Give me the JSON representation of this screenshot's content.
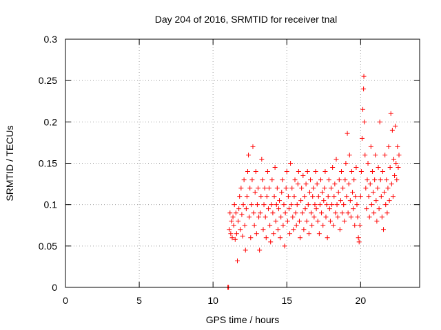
{
  "chart_data": {
    "type": "scatter",
    "title": "Day 204 of 2016, SRMTID for receiver tnal",
    "xlabel": "GPS time / hours",
    "ylabel": "SRMTID / TECUs",
    "xlim": [
      0,
      24
    ],
    "ylim": [
      0,
      0.3
    ],
    "xticks": [
      0,
      5,
      10,
      15,
      20
    ],
    "xtick_labels": [
      "0",
      "5",
      "10",
      "15",
      "20"
    ],
    "yticks": [
      0,
      0.05,
      0.1,
      0.15,
      0.2,
      0.25,
      0.3
    ],
    "ytick_labels": [
      "0",
      "0.05",
      "0.1",
      "0.15",
      "0.2",
      "0.25",
      "0.3"
    ],
    "grid": true,
    "marker": "+",
    "color": "#ff0000",
    "series": [
      {
        "name": "SRMTID",
        "points": [
          [
            11.0,
            0.0
          ],
          [
            11.02,
            0.0
          ],
          [
            11.05,
            0.0
          ],
          [
            11.1,
            0.07
          ],
          [
            11.15,
            0.09
          ],
          [
            11.2,
            0.065
          ],
          [
            11.25,
            0.08
          ],
          [
            11.3,
            0.06
          ],
          [
            11.35,
            0.085
          ],
          [
            11.4,
            0.075
          ],
          [
            11.45,
            0.1
          ],
          [
            11.5,
            0.058
          ],
          [
            11.55,
            0.09
          ],
          [
            11.6,
            0.065
          ],
          [
            11.65,
            0.032
          ],
          [
            11.7,
            0.08
          ],
          [
            11.75,
            0.095
          ],
          [
            11.8,
            0.11
          ],
          [
            11.85,
            0.07
          ],
          [
            11.9,
            0.12
          ],
          [
            11.95,
            0.088
          ],
          [
            12.0,
            0.062
          ],
          [
            12.05,
            0.1
          ],
          [
            12.1,
            0.13
          ],
          [
            12.15,
            0.075
          ],
          [
            12.2,
            0.045
          ],
          [
            12.25,
            0.095
          ],
          [
            12.3,
            0.11
          ],
          [
            12.35,
            0.14
          ],
          [
            12.4,
            0.16
          ],
          [
            12.45,
            0.085
          ],
          [
            12.5,
            0.12
          ],
          [
            12.55,
            0.06
          ],
          [
            12.6,
            0.1
          ],
          [
            12.65,
            0.13
          ],
          [
            12.7,
            0.17
          ],
          [
            12.75,
            0.09
          ],
          [
            12.8,
            0.075
          ],
          [
            12.85,
            0.115
          ],
          [
            12.9,
            0.14
          ],
          [
            12.95,
            0.065
          ],
          [
            13.0,
            0.1
          ],
          [
            13.05,
            0.12
          ],
          [
            13.1,
            0.085
          ],
          [
            13.15,
            0.045
          ],
          [
            13.2,
            0.09
          ],
          [
            13.25,
            0.11
          ],
          [
            13.3,
            0.155
          ],
          [
            13.35,
            0.13
          ],
          [
            13.4,
            0.07
          ],
          [
            13.45,
            0.1
          ],
          [
            13.5,
            0.12
          ],
          [
            13.55,
            0.085
          ],
          [
            13.6,
            0.06
          ],
          [
            13.65,
            0.11
          ],
          [
            13.7,
            0.14
          ],
          [
            13.75,
            0.095
          ],
          [
            13.8,
            0.12
          ],
          [
            13.85,
            0.075
          ],
          [
            13.9,
            0.055
          ],
          [
            13.95,
            0.1
          ],
          [
            14.0,
            0.13
          ],
          [
            14.05,
            0.09
          ],
          [
            14.1,
            0.065
          ],
          [
            14.15,
            0.11
          ],
          [
            14.2,
            0.145
          ],
          [
            14.25,
            0.08
          ],
          [
            14.3,
            0.1
          ],
          [
            14.35,
            0.12
          ],
          [
            14.4,
            0.07
          ],
          [
            14.45,
            0.095
          ],
          [
            14.5,
            0.105
          ],
          [
            14.55,
            0.06
          ],
          [
            14.6,
            0.085
          ],
          [
            14.65,
            0.115
          ],
          [
            14.7,
            0.13
          ],
          [
            14.75,
            0.075
          ],
          [
            14.8,
            0.1
          ],
          [
            14.85,
            0.05
          ],
          [
            14.9,
            0.09
          ],
          [
            14.95,
            0.12
          ],
          [
            15.0,
            0.14
          ],
          [
            15.05,
            0.08
          ],
          [
            15.1,
            0.11
          ],
          [
            15.15,
            0.095
          ],
          [
            15.2,
            0.065
          ],
          [
            15.25,
            0.15
          ],
          [
            15.3,
            0.1
          ],
          [
            15.35,
            0.12
          ],
          [
            15.4,
            0.085
          ],
          [
            15.45,
            0.07
          ],
          [
            15.5,
            0.11
          ],
          [
            15.55,
            0.13
          ],
          [
            15.6,
            0.09
          ],
          [
            15.65,
            0.075
          ],
          [
            15.7,
            0.1
          ],
          [
            15.75,
            0.125
          ],
          [
            15.8,
            0.14
          ],
          [
            15.85,
            0.08
          ],
          [
            15.9,
            0.06
          ],
          [
            15.95,
            0.105
          ],
          [
            16.0,
            0.12
          ],
          [
            16.05,
            0.09
          ],
          [
            16.1,
            0.135
          ],
          [
            16.15,
            0.07
          ],
          [
            16.2,
            0.11
          ],
          [
            16.25,
            0.095
          ],
          [
            16.3,
            0.125
          ],
          [
            16.35,
            0.08
          ],
          [
            16.4,
            0.14
          ],
          [
            16.45,
            0.1
          ],
          [
            16.5,
            0.065
          ],
          [
            16.55,
            0.115
          ],
          [
            16.6,
            0.13
          ],
          [
            16.65,
            0.09
          ],
          [
            16.7,
            0.075
          ],
          [
            16.75,
            0.11
          ],
          [
            16.8,
            0.12
          ],
          [
            16.85,
            0.085
          ],
          [
            16.9,
            0.1
          ],
          [
            16.95,
            0.14
          ],
          [
            17.0,
            0.095
          ],
          [
            17.05,
            0.125
          ],
          [
            17.1,
            0.08
          ],
          [
            17.15,
            0.11
          ],
          [
            17.2,
            0.065
          ],
          [
            17.25,
            0.1
          ],
          [
            17.3,
            0.13
          ],
          [
            17.35,
            0.09
          ],
          [
            17.4,
            0.115
          ],
          [
            17.45,
            0.075
          ],
          [
            17.5,
            0.105
          ],
          [
            17.55,
            0.12
          ],
          [
            17.6,
            0.14
          ],
          [
            17.65,
            0.085
          ],
          [
            17.7,
            0.1
          ],
          [
            17.75,
            0.06
          ],
          [
            17.8,
            0.11
          ],
          [
            17.85,
            0.13
          ],
          [
            17.9,
            0.095
          ],
          [
            17.95,
            0.08
          ],
          [
            18.0,
            0.12
          ],
          [
            18.05,
            0.1
          ],
          [
            18.1,
            0.145
          ],
          [
            18.15,
            0.075
          ],
          [
            18.2,
            0.11
          ],
          [
            18.25,
            0.125
          ],
          [
            18.3,
            0.09
          ],
          [
            18.35,
            0.155
          ],
          [
            18.4,
            0.1
          ],
          [
            18.45,
            0.085
          ],
          [
            18.5,
            0.115
          ],
          [
            18.55,
            0.13
          ],
          [
            18.6,
            0.07
          ],
          [
            18.65,
            0.105
          ],
          [
            18.7,
            0.14
          ],
          [
            18.75,
            0.09
          ],
          [
            18.8,
            0.12
          ],
          [
            18.85,
            0.1
          ],
          [
            18.9,
            0.08
          ],
          [
            18.95,
            0.13
          ],
          [
            19.0,
            0.15
          ],
          [
            19.05,
            0.11
          ],
          [
            19.1,
            0.186
          ],
          [
            19.15,
            0.09
          ],
          [
            19.2,
            0.125
          ],
          [
            19.25,
            0.16
          ],
          [
            19.3,
            0.105
          ],
          [
            19.35,
            0.085
          ],
          [
            19.4,
            0.14
          ],
          [
            19.45,
            0.115
          ],
          [
            19.5,
            0.095
          ],
          [
            19.55,
            0.13
          ],
          [
            19.6,
            0.075
          ],
          [
            19.65,
            0.11
          ],
          [
            19.7,
            0.145
          ],
          [
            19.75,
            0.1
          ],
          [
            19.8,
            0.085
          ],
          [
            19.85,
            0.06
          ],
          [
            19.9,
            0.055
          ],
          [
            19.95,
            0.075
          ],
          [
            20.0,
            0.11
          ],
          [
            20.05,
            0.14
          ],
          [
            20.1,
            0.18
          ],
          [
            20.15,
            0.215
          ],
          [
            20.2,
            0.24
          ],
          [
            20.22,
            0.255
          ],
          [
            20.25,
            0.2
          ],
          [
            20.3,
            0.16
          ],
          [
            20.35,
            0.12
          ],
          [
            20.4,
            0.095
          ],
          [
            20.45,
            0.13
          ],
          [
            20.5,
            0.15
          ],
          [
            20.55,
            0.11
          ],
          [
            20.6,
            0.085
          ],
          [
            20.65,
            0.125
          ],
          [
            20.7,
            0.17
          ],
          [
            20.75,
            0.1
          ],
          [
            20.8,
            0.14
          ],
          [
            20.85,
            0.115
          ],
          [
            20.9,
            0.09
          ],
          [
            20.95,
            0.13
          ],
          [
            21.0,
            0.16
          ],
          [
            21.05,
            0.105
          ],
          [
            21.1,
            0.08
          ],
          [
            21.15,
            0.12
          ],
          [
            21.2,
            0.145
          ],
          [
            21.25,
            0.095
          ],
          [
            21.3,
            0.2
          ],
          [
            21.35,
            0.13
          ],
          [
            21.4,
            0.11
          ],
          [
            21.45,
            0.085
          ],
          [
            21.5,
            0.14
          ],
          [
            21.55,
            0.07
          ],
          [
            21.6,
            0.115
          ],
          [
            21.65,
            0.16
          ],
          [
            21.7,
            0.1
          ],
          [
            21.75,
            0.13
          ],
          [
            21.8,
            0.09
          ],
          [
            21.85,
            0.12
          ],
          [
            21.9,
            0.17
          ],
          [
            21.95,
            0.105
          ],
          [
            22.0,
            0.145
          ],
          [
            22.05,
            0.21
          ],
          [
            22.1,
            0.125
          ],
          [
            22.15,
            0.19
          ],
          [
            22.2,
            0.11
          ],
          [
            22.25,
            0.155
          ],
          [
            22.3,
            0.135
          ],
          [
            22.35,
            0.195
          ],
          [
            22.4,
            0.15
          ],
          [
            22.45,
            0.13
          ],
          [
            22.5,
            0.17
          ],
          [
            22.55,
            0.145
          ],
          [
            22.6,
            0.16
          ]
        ]
      }
    ]
  }
}
